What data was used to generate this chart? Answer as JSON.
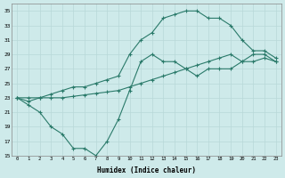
{
  "xlabel": "Humidex (Indice chaleur)",
  "xlim": [
    -0.5,
    23.5
  ],
  "ylim": [
    15,
    36
  ],
  "yticks": [
    15,
    17,
    19,
    21,
    23,
    25,
    27,
    29,
    31,
    33,
    35
  ],
  "xticks": [
    0,
    1,
    2,
    3,
    4,
    5,
    6,
    7,
    8,
    9,
    10,
    11,
    12,
    13,
    14,
    15,
    16,
    17,
    18,
    19,
    20,
    21,
    22,
    23
  ],
  "background_color": "#ceeaea",
  "grid_color": "#b8d8d8",
  "line_color": "#2a7a6a",
  "line1_x": [
    0,
    1,
    2,
    3,
    4,
    5,
    6,
    7,
    8,
    9,
    10,
    11,
    12,
    13,
    14,
    15,
    16,
    17,
    18,
    19,
    20,
    21,
    22,
    23
  ],
  "line1_y": [
    23,
    22,
    21,
    19,
    18,
    16,
    16,
    15,
    17,
    20,
    24,
    28,
    29,
    28,
    28,
    27,
    26,
    27,
    27,
    27,
    28,
    29,
    29,
    28
  ],
  "line2_x": [
    0,
    1,
    2,
    3,
    4,
    5,
    6,
    7,
    8,
    9,
    10,
    11,
    12,
    13,
    14,
    15,
    16,
    17,
    18,
    19,
    20,
    21,
    22,
    23
  ],
  "line2_y": [
    23,
    23,
    23,
    23,
    23,
    23.2,
    23.4,
    23.6,
    23.8,
    24,
    24.5,
    25,
    25.5,
    26,
    26.5,
    27,
    27.5,
    28,
    28.5,
    29,
    28,
    28,
    28.5,
    28
  ],
  "line3_x": [
    0,
    1,
    2,
    3,
    4,
    5,
    6,
    7,
    8,
    9,
    10,
    11,
    12,
    13,
    14,
    15,
    16,
    17,
    18,
    19,
    20,
    21,
    22,
    23
  ],
  "line3_y": [
    23,
    22.5,
    23,
    23.5,
    24,
    24.5,
    24.5,
    25,
    25.5,
    26,
    29,
    31,
    32,
    34,
    34.5,
    35,
    35,
    34,
    34,
    33,
    31,
    29.5,
    29.5,
    28.5
  ],
  "figsize": [
    3.2,
    2.0
  ],
  "dpi": 100
}
